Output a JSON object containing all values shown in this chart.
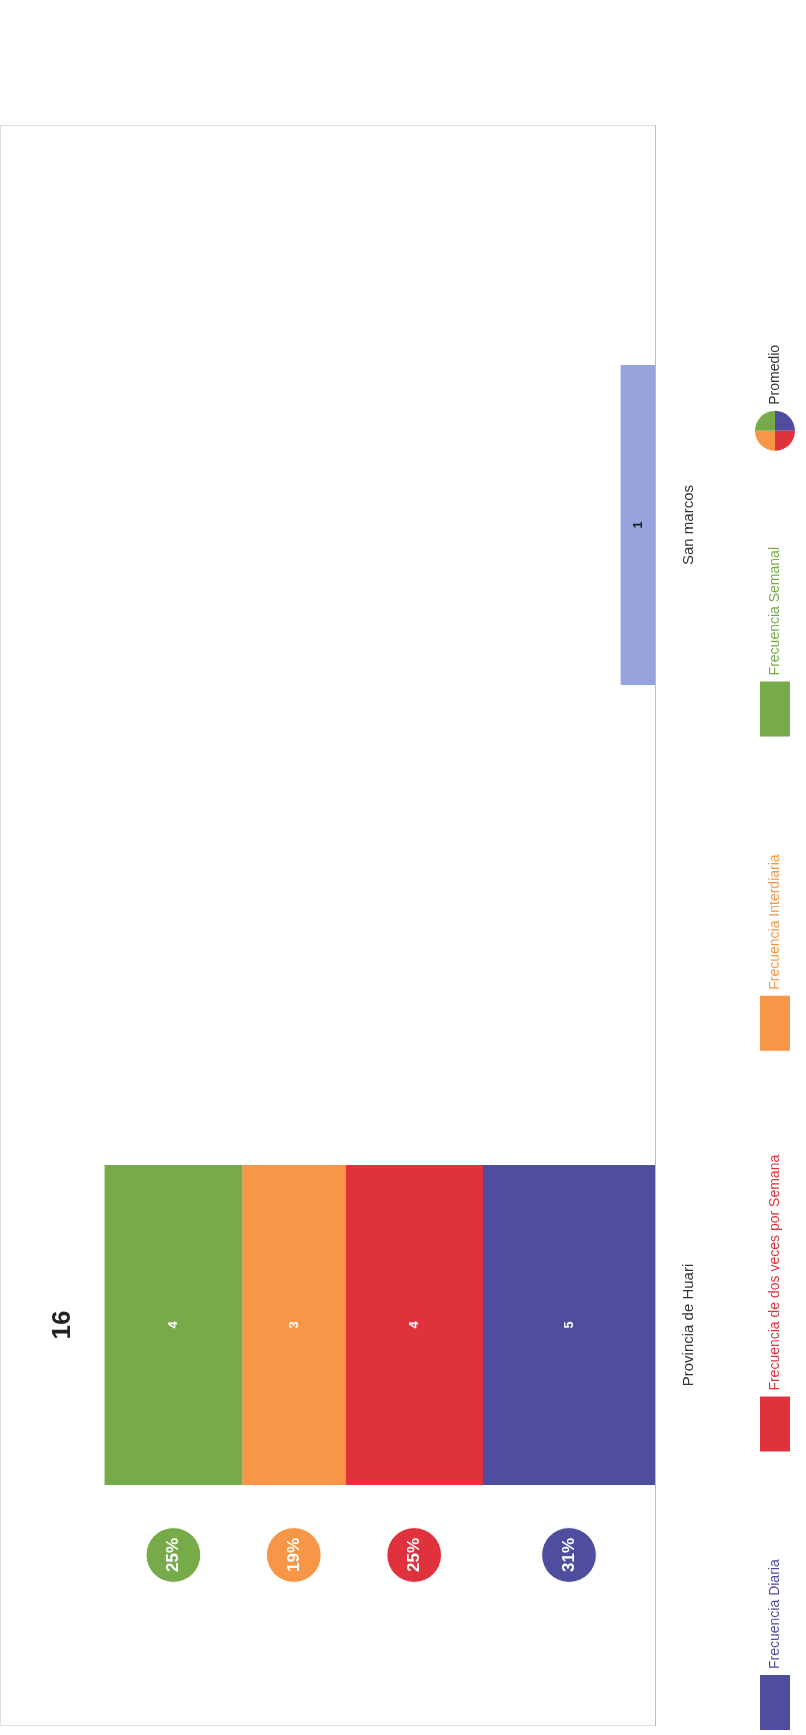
{
  "chart_data": {
    "type": "bar",
    "orientation": "horizontal",
    "stacked": true,
    "categories": [
      "San marcos",
      "Provincia de Huari"
    ],
    "series": [
      {
        "name": "Frecuencia Diaria",
        "color": "#4f4e9e",
        "colors": [
          "#97a3dc",
          "#4f4e9e"
        ],
        "values": [
          1,
          5
        ]
      },
      {
        "name": "Frecuencia de dos veces por Semana",
        "color": "#e0323c",
        "values": [
          null,
          4
        ]
      },
      {
        "name": "Frecuencia Interdiaria",
        "color": "#f79646",
        "values": [
          null,
          3
        ]
      },
      {
        "name": "Frecuencia Semanal",
        "color": "#77ab4a",
        "values": [
          null,
          4
        ]
      }
    ],
    "data_labels": true,
    "totals": [
      null,
      "16"
    ],
    "annotations": [
      "31%",
      "25%",
      "19%",
      "25%",
      "Promedio"
    ],
    "legend": "right"
  }
}
